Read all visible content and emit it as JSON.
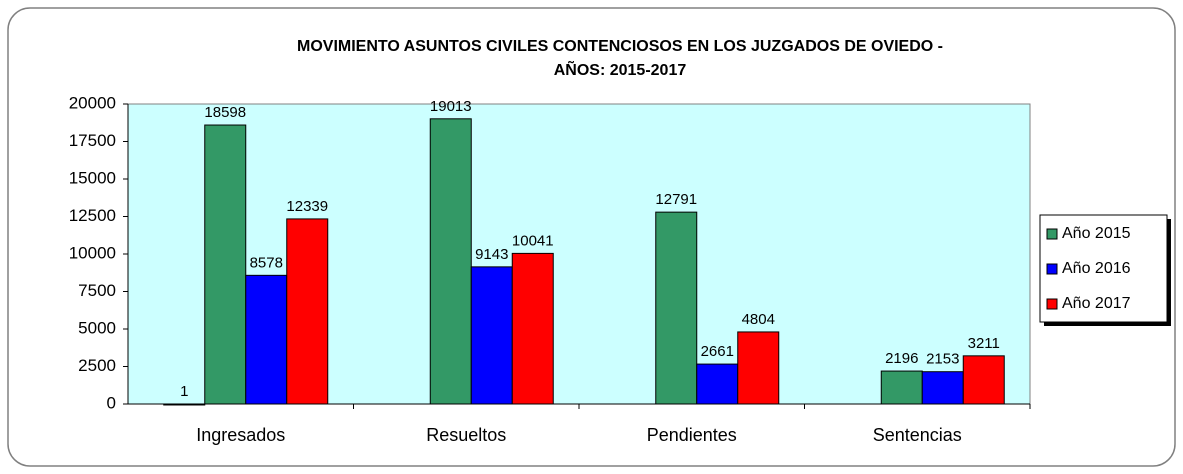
{
  "chart_data": {
    "type": "bar",
    "title": [
      "MOVIMIENTO ASUNTOS CIVILES CONTENCIOSOS EN LOS JUZGADOS DE OVIEDO -",
      "AÑOS: 2015-2017"
    ],
    "categories": [
      "Ingresados",
      "Resueltos",
      "Pendientes",
      "Sentencias"
    ],
    "series": [
      {
        "color": "#404040",
        "values": [
          1,
          null,
          null,
          null
        ]
      },
      {
        "name": "Año 2015",
        "color": "#339966",
        "values": [
          18598,
          19013,
          12791,
          2196
        ]
      },
      {
        "name": "Año 2016",
        "color": "#0000ff",
        "values": [
          8578,
          9143,
          2661,
          2153
        ]
      },
      {
        "name": "Año 2017",
        "color": "#ff0000",
        "values": [
          12339,
          10041,
          4804,
          3211
        ]
      }
    ],
    "ylim": [
      0,
      20000
    ],
    "yticks": [
      0,
      2500,
      5000,
      7500,
      10000,
      12500,
      15000,
      17500,
      20000
    ],
    "legend": "right"
  }
}
